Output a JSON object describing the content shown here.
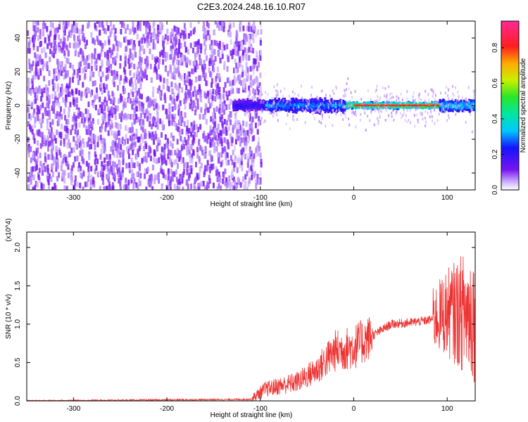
{
  "title": "C2E3.2024.248.16.10.R07",
  "chart_data": [
    {
      "type": "heatmap",
      "xlabel": "Height of straight line (km)",
      "ylabel": "Frequency (Hz)",
      "xlim": [
        -350,
        130
      ],
      "ylim": [
        -50,
        50
      ],
      "x_ticks": [
        -300,
        -200,
        -100,
        0,
        100
      ],
      "y_ticks": [
        -40,
        -20,
        0,
        20,
        40
      ],
      "colorbar": {
        "label": "Normalized spectral amplitude",
        "range": [
          0.0,
          0.95
        ],
        "ticks": [
          0.0,
          0.2,
          0.4,
          0.6,
          0.8
        ],
        "colormap": "rainbow"
      },
      "regions": [
        {
          "x_range": [
            -350,
            -100
          ],
          "freq_spread": 50,
          "amplitude": 0.05
        },
        {
          "x_range": [
            -100,
            0
          ],
          "freq_spread": 8,
          "amplitude": 0.3
        },
        {
          "x_range": [
            0,
            90
          ],
          "freq_spread": 3,
          "amplitude": 0.9
        },
        {
          "x_range": [
            90,
            130
          ],
          "freq_spread": 8,
          "amplitude": 0.3
        }
      ]
    },
    {
      "type": "line",
      "xlabel": "Height of straight line (km)",
      "ylabel": "SNR (10 * v/v)",
      "ylabel_multiplier": "(x10^4)",
      "xlim": [
        -350,
        130
      ],
      "ylim": [
        0,
        2.2
      ],
      "x_ticks": [
        -300,
        -200,
        -100,
        0,
        100
      ],
      "y_ticks": [
        0.0,
        0.5,
        1.0,
        1.5,
        2.0
      ],
      "color": "#ee3333",
      "profile": [
        {
          "x": -350,
          "y": 0.0
        },
        {
          "x": -110,
          "y": 0.02
        },
        {
          "x": -95,
          "y": 0.15
        },
        {
          "x": -60,
          "y": 0.25
        },
        {
          "x": -40,
          "y": 0.4
        },
        {
          "x": -20,
          "y": 0.65
        },
        {
          "x": 0,
          "y": 0.7
        },
        {
          "x": 20,
          "y": 0.85
        },
        {
          "x": 40,
          "y": 1.0
        },
        {
          "x": 60,
          "y": 1.02
        },
        {
          "x": 80,
          "y": 1.05
        },
        {
          "x": 100,
          "y": 1.15
        },
        {
          "x": 130,
          "y": 1.15
        }
      ]
    }
  ]
}
